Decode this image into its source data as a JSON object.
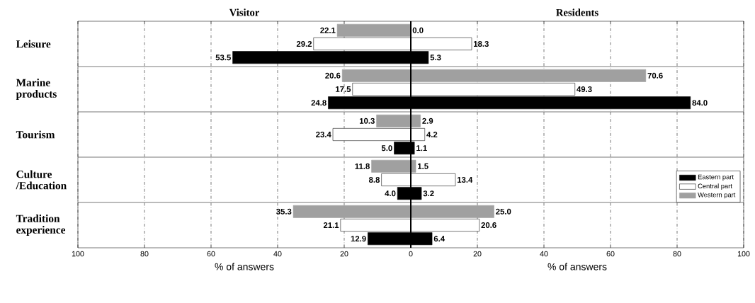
{
  "chart_data": [
    {
      "type": "bar",
      "orientation": "horizontal",
      "title": "Visitor",
      "xlabel": "% of answers",
      "categories": [
        "Leisure",
        "Marine products",
        "Tourism",
        "Culture /Education",
        "Tradition experience"
      ],
      "xlim": [
        100,
        0
      ],
      "xticks": [
        100,
        80,
        60,
        40,
        20,
        {
          "value": 0,
          "label": null
        }
      ],
      "grid": "x",
      "series": [
        {
          "name": null,
          "color": "#a0a0a0",
          "values": [
            22.1,
            20.6,
            10.3,
            11.8,
            35.3
          ],
          "value_labels": [
            "22.1",
            "20.6",
            "10.3",
            "11.8",
            "35.3"
          ]
        },
        {
          "name": null,
          "color": "#ffffff",
          "values": [
            29.2,
            17.5,
            23.4,
            8.8,
            21.1
          ],
          "value_labels": [
            "29.2",
            "17.5",
            "23.4",
            "8.8",
            "21.1"
          ]
        },
        {
          "name": null,
          "color": "#000000",
          "values": [
            53.5,
            24.8,
            5.0,
            4.0,
            12.9
          ],
          "value_labels": [
            "53.5",
            "24.8",
            "5.0",
            "4.0",
            "12.9"
          ]
        }
      ]
    },
    {
      "type": "bar",
      "orientation": "horizontal",
      "title": "Residents",
      "xlabel": "% of answers",
      "categories": [
        null,
        null,
        null,
        null,
        null
      ],
      "xlim": [
        0,
        100
      ],
      "xticks": [
        0,
        20,
        40,
        60,
        80,
        100
      ],
      "grid": "x",
      "tick_labels": "x",
      "legend": "bottom right",
      "series": [
        {
          "name": "Western part",
          "color": "#a0a0a0",
          "values": [
            0.0,
            70.6,
            2.9,
            1.5,
            25.0
          ],
          "value_labels": [
            "0.0",
            "70.6",
            "2.9",
            "1.5",
            "25.0"
          ]
        },
        {
          "name": "Central part",
          "color": "#ffffff",
          "values": [
            18.3,
            49.3,
            4.2,
            13.4,
            20.6
          ],
          "value_labels": [
            "18.3",
            "49.3",
            "4.2",
            "13.4",
            "20.6"
          ]
        },
        {
          "name": "Eastern part",
          "color": "#000000",
          "values": [
            5.3,
            84.0,
            1.1,
            3.2,
            6.4
          ],
          "value_labels": [
            "5.3",
            "84.0",
            "1.1",
            "3.2",
            "6.4"
          ]
        }
      ]
    }
  ]
}
